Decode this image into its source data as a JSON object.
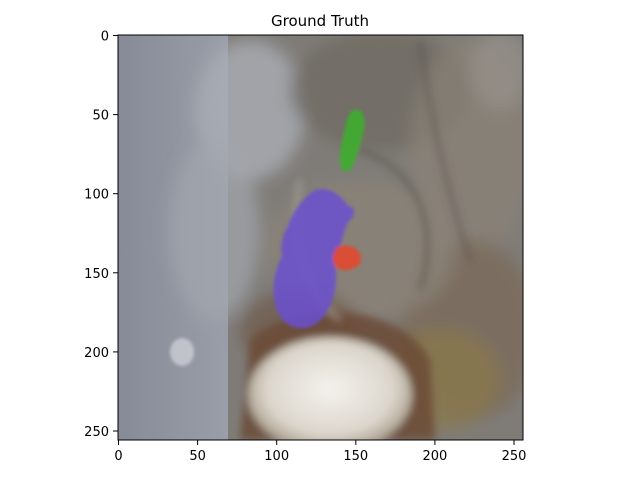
{
  "figure": {
    "title": "Ground Truth"
  },
  "axes": {
    "x_ticks": [
      "0",
      "50",
      "100",
      "150",
      "200",
      "250"
    ],
    "y_ticks": [
      "0",
      "50",
      "100",
      "150",
      "200",
      "250"
    ],
    "x_range": [
      0,
      256
    ],
    "y_range": [
      0,
      256
    ],
    "y_inverted": true
  },
  "image": {
    "description_colors": {
      "background_left": "#8e939f",
      "tissue": "#7b756b",
      "bright_region": "#e8e4de",
      "brown_rim": "#7a5a3e"
    }
  },
  "overlays": [
    {
      "name": "green-region",
      "color": "#3fae2f"
    },
    {
      "name": "purple-region",
      "color": "#6a4fd0"
    },
    {
      "name": "red-region",
      "color": "#e2492f"
    }
  ]
}
